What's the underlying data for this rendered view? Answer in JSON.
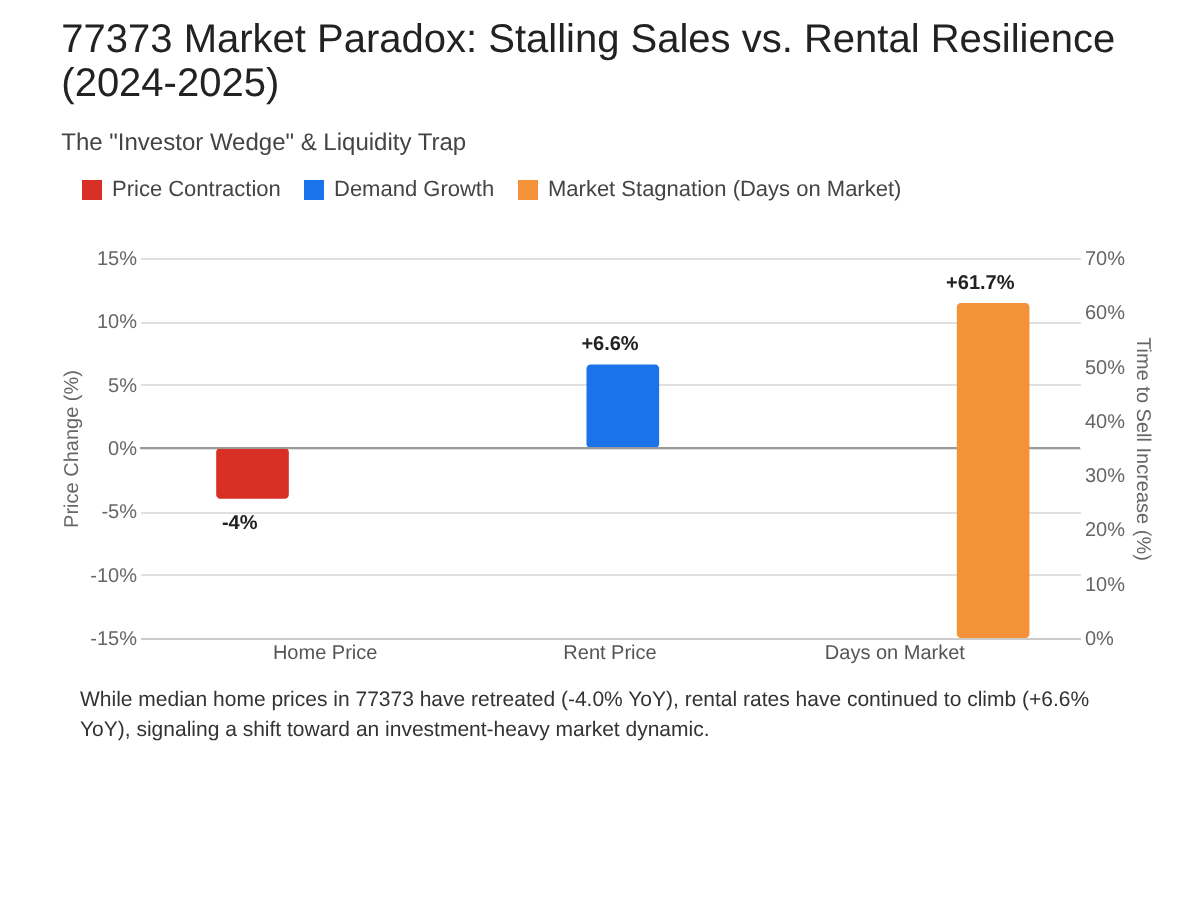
{
  "chart_data": {
    "type": "bar",
    "title": [
      "77373 Market Paradox: Stalling Sales vs. Rental Resilience",
      "(2024-2025)"
    ],
    "subtitle": "The \"Investor Wedge\" & Liquidity Trap",
    "categories": [
      "Home Price",
      "Rent Price",
      "Days on Market"
    ],
    "series": [
      {
        "name": "Price Contraction",
        "color": "#d93025",
        "values": [
          -4,
          null,
          null
        ],
        "value_labels": [
          "-4%",
          null,
          null
        ]
      },
      {
        "name": "Demand Growth",
        "color": "#1a73e8",
        "values": [
          null,
          6.6,
          null
        ],
        "value_labels": [
          null,
          "+6.6%",
          null
        ]
      },
      {
        "name": "Market Stagnation (Days on Market)",
        "color": "#f4923a",
        "values": [
          null,
          null,
          61.7
        ],
        "value_labels": [
          null,
          null,
          "+61.7%"
        ],
        "axis": "y2"
      }
    ],
    "ylabel": "Price Change (%)",
    "y2label": "Time to Sell Increase (%)",
    "ylim": [
      -15,
      15
    ],
    "yticks": [
      {
        "value": -15,
        "label": "-15%"
      },
      {
        "value": -10,
        "label": "-10%"
      },
      {
        "value": -5,
        "label": "-5%"
      },
      {
        "value": 0,
        "label": "0%"
      },
      {
        "value": 5,
        "label": "5%"
      },
      {
        "value": 10,
        "label": "10%"
      },
      {
        "value": 15,
        "label": "15%"
      }
    ],
    "y2lim": [
      0,
      70
    ],
    "y2ticks": [
      {
        "value": 0,
        "label": "0%"
      },
      {
        "value": 10,
        "label": "10%"
      },
      {
        "value": 20,
        "label": "20%"
      },
      {
        "value": 30,
        "label": "30%"
      },
      {
        "value": 40,
        "label": "40%"
      },
      {
        "value": 50,
        "label": "50%"
      },
      {
        "value": 60,
        "label": "60%"
      },
      {
        "value": 70,
        "label": "70%"
      }
    ],
    "grid": "y",
    "legend": "top left",
    "annotations": [
      "While median home prices in 77373 have retreated (-4.0% YoY), rental rates have continued to climb (+6.6% YoY), signaling a shift toward an investment-heavy market dynamic."
    ]
  }
}
